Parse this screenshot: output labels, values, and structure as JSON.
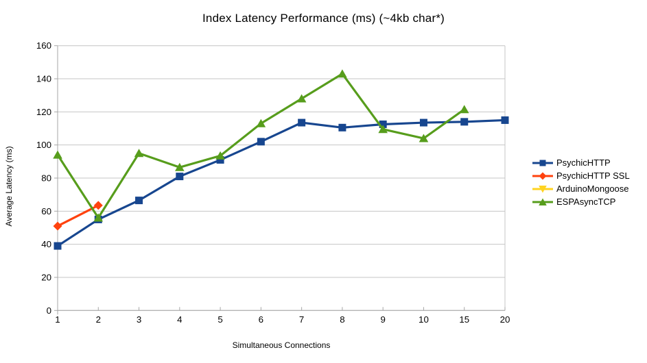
{
  "chart_data": {
    "type": "line",
    "title": "Index Latency Performance (ms) (~4kb char*)",
    "xlabel": "Simultaneous Connections",
    "ylabel": "Average Latency (ms)",
    "categories": [
      "1",
      "2",
      "3",
      "4",
      "5",
      "6",
      "7",
      "8",
      "9",
      "10",
      "15",
      "20"
    ],
    "ylim": [
      0,
      160
    ],
    "yticks": [
      0,
      20,
      40,
      60,
      80,
      100,
      120,
      140,
      160
    ],
    "grid": true,
    "legend_position": "right",
    "colors": {
      "axis": "#a6a6a6",
      "gridline": "#c4c4c4",
      "text": "#000000"
    },
    "series": [
      {
        "name": "PsychicHTTP",
        "color": "#17468f",
        "marker": "square",
        "values": [
          39,
          55,
          66.5,
          81,
          91,
          102,
          113.5,
          110.5,
          112.5,
          113.5,
          114,
          115
        ]
      },
      {
        "name": "PsychicHTTP SSL",
        "color": "#ff420e",
        "marker": "diamond",
        "values": [
          51,
          63.5,
          null,
          null,
          null,
          null,
          null,
          null,
          null,
          null,
          null,
          null
        ]
      },
      {
        "name": "ArduinoMongoose",
        "color": "#ffd320",
        "marker": "triangle-down",
        "values": [
          null,
          null,
          null,
          null,
          null,
          null,
          null,
          null,
          null,
          null,
          null,
          null
        ]
      },
      {
        "name": "ESPAsyncTCP",
        "color": "#579d1c",
        "marker": "triangle-up",
        "values": [
          94,
          56,
          95,
          86.5,
          93.5,
          113,
          128,
          143,
          109.5,
          104,
          121.5,
          null
        ]
      }
    ]
  }
}
